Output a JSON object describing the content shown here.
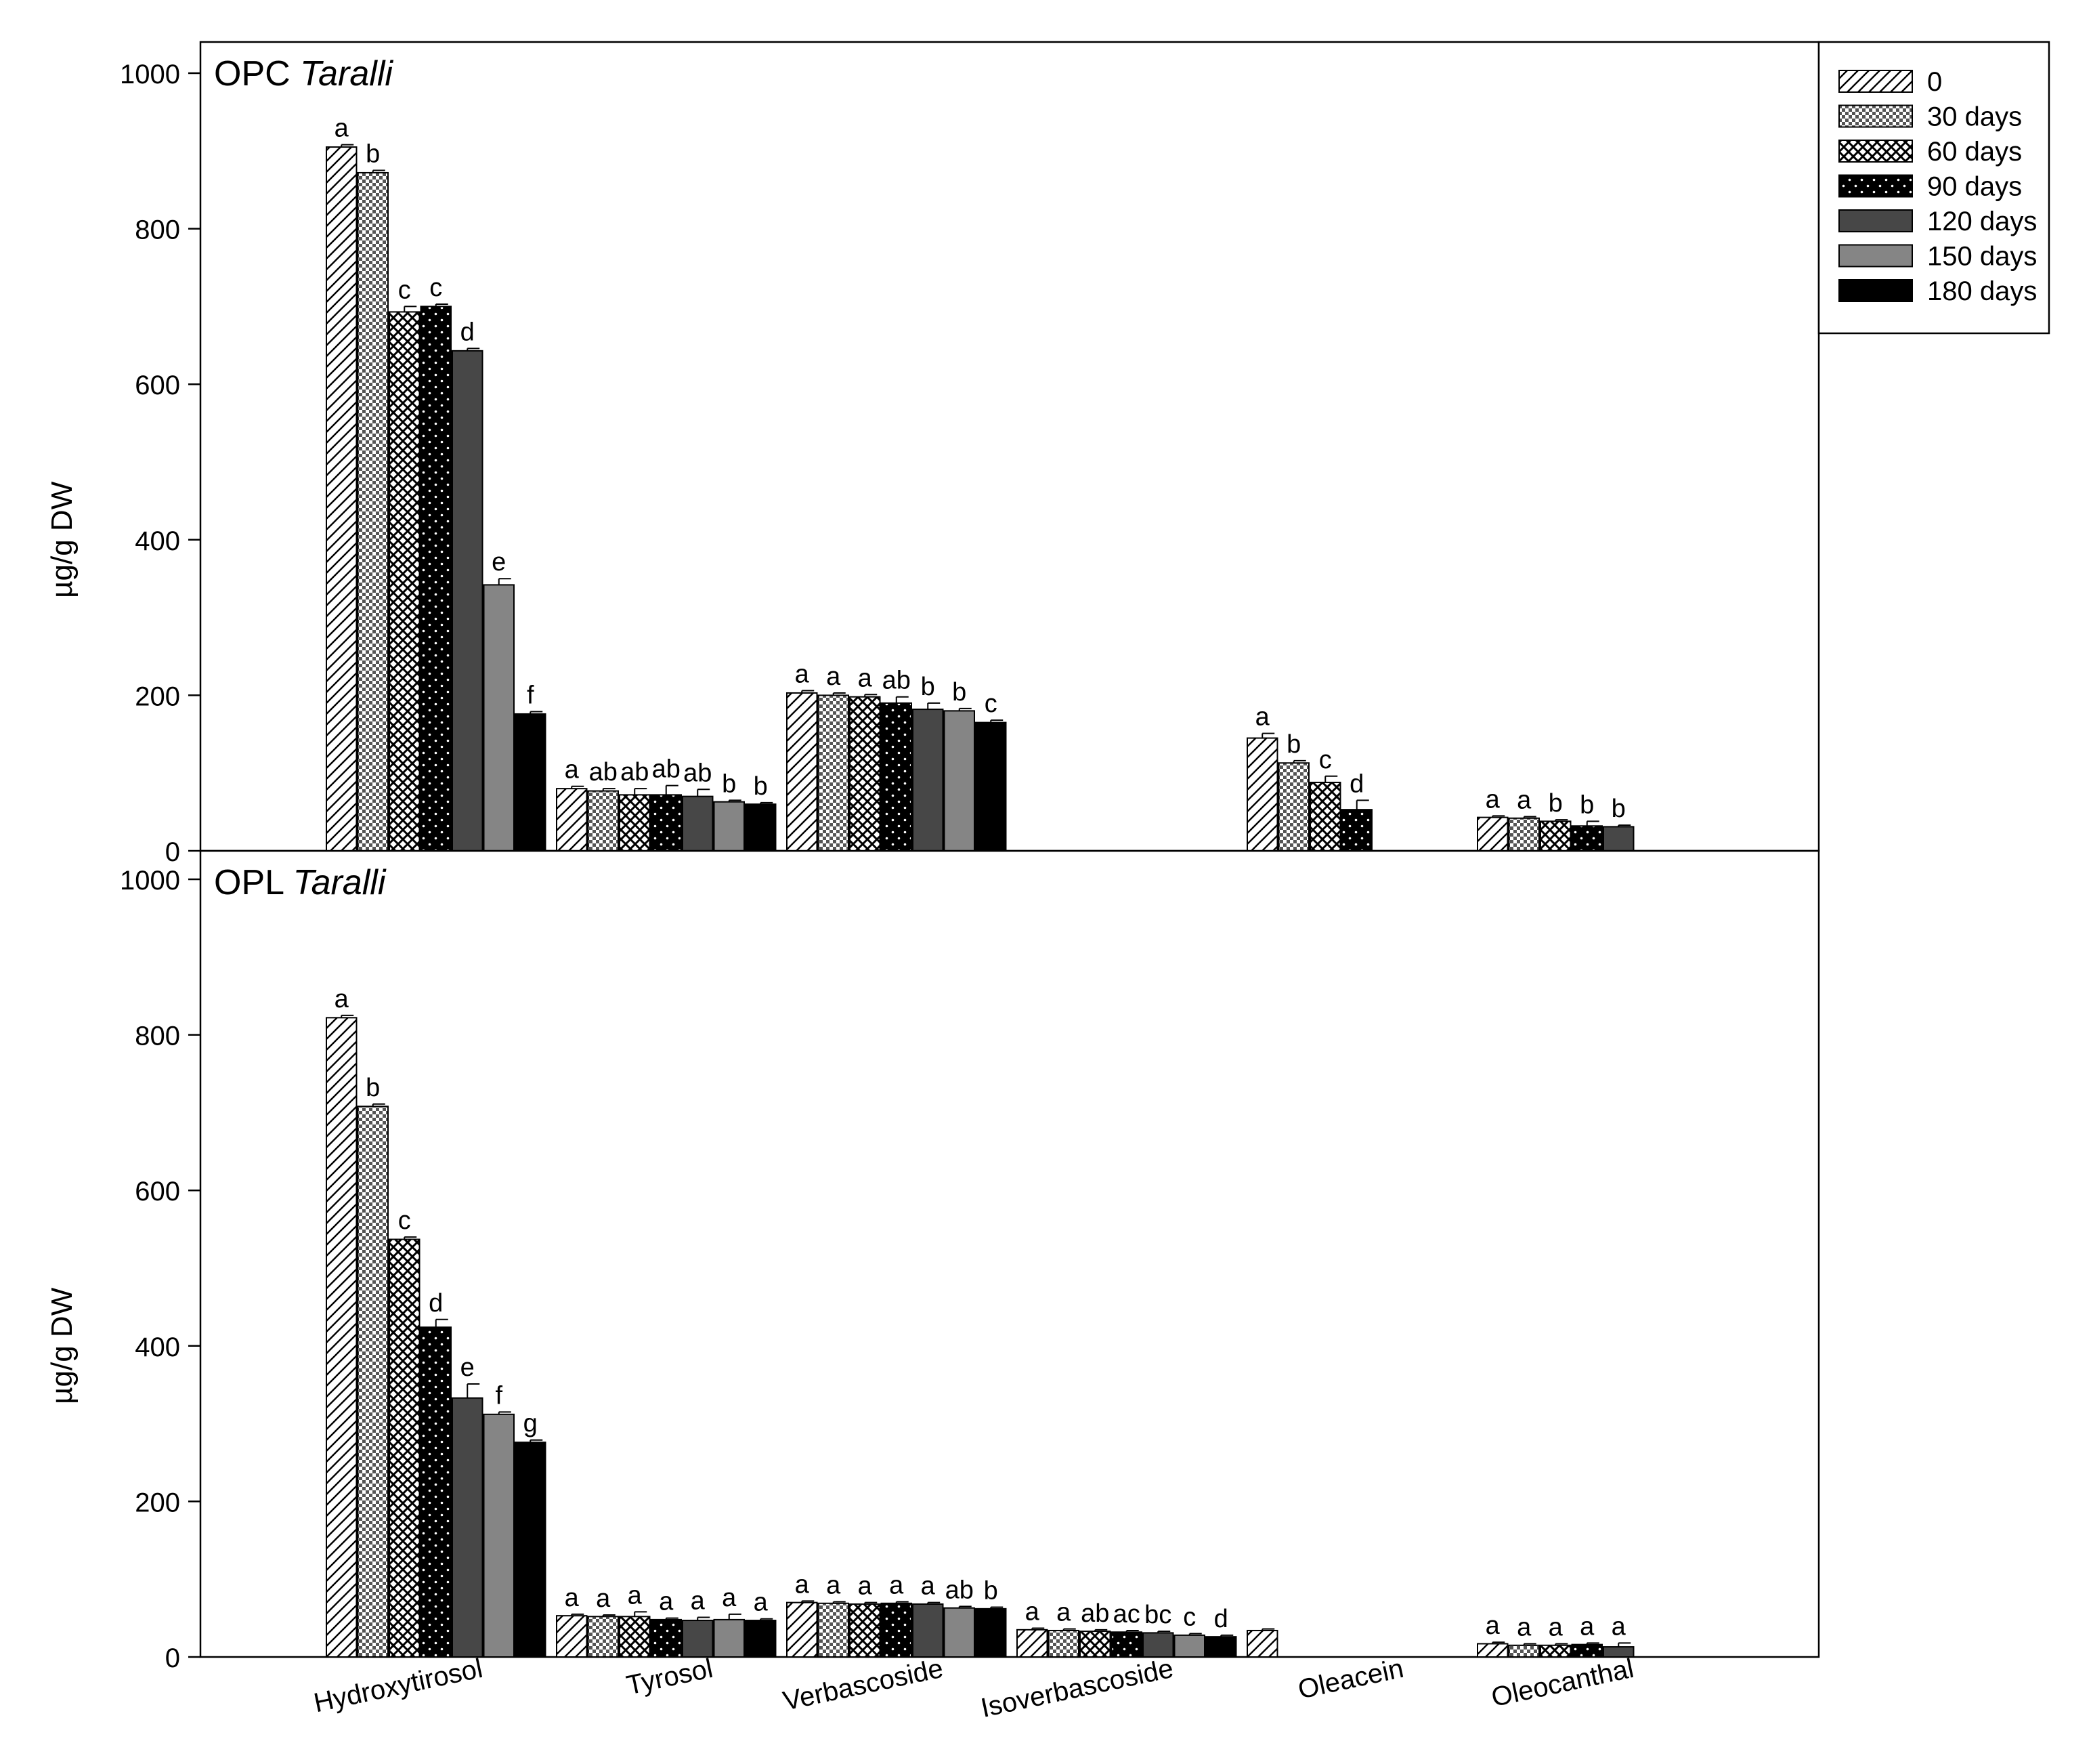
{
  "chart_data": {
    "type": "bar",
    "categories": [
      "Hydroxytirosol",
      "Tyrosol",
      "Verbascoside",
      "Isoverbascoside",
      "Oleacein",
      "Oleocanthal"
    ],
    "legend": {
      "position": "top-right",
      "entries": [
        "0",
        "30 days",
        "60 days",
        "90 days",
        "120 days",
        "150 days",
        "180 days"
      ]
    },
    "y_ticks": [
      "0",
      "200",
      "400",
      "600",
      "800",
      "1000"
    ],
    "ylim": [
      0,
      1040
    ],
    "grid": false,
    "panels": [
      {
        "title_prefix": "OPC",
        "title_italic": "Taralli",
        "ylabel": "µg/g DW",
        "series": [
          {
            "name": "0",
            "values": [
              905,
              80,
              203,
              null,
              145,
              43
            ]
          },
          {
            "name": "30 days",
            "values": [
              872,
              77,
              200,
              null,
              113,
              42
            ]
          },
          {
            "name": "60 days",
            "values": [
              693,
              72,
              198,
              null,
              88,
              38
            ]
          },
          {
            "name": "90 days",
            "values": [
              700,
              72,
              190,
              null,
              53,
              32
            ]
          },
          {
            "name": "120 days",
            "values": [
              643,
              70,
              182,
              null,
              null,
              31
            ]
          },
          {
            "name": "150 days",
            "values": [
              342,
              63,
              180,
              null,
              null,
              null
            ]
          },
          {
            "name": "180 days",
            "values": [
              176,
              60,
              165,
              null,
              null,
              null
            ]
          }
        ],
        "errors": [
          [
            3,
            3,
            3,
            null,
            6,
            2
          ],
          [
            3,
            3,
            3,
            null,
            3,
            2
          ],
          [
            7,
            8,
            3,
            null,
            8,
            2
          ],
          [
            3,
            12,
            8,
            null,
            12,
            6
          ],
          [
            3,
            9,
            8,
            null,
            null,
            2
          ],
          [
            8,
            2,
            3,
            null,
            null,
            null
          ],
          [
            3,
            2,
            3,
            null,
            null,
            null
          ]
        ],
        "letters": [
          [
            "a",
            "a",
            "a",
            null,
            "a",
            "a"
          ],
          [
            "b",
            "ab",
            "a",
            null,
            "b",
            "a"
          ],
          [
            "c",
            "ab",
            "a",
            null,
            "c",
            "b"
          ],
          [
            "c",
            "ab",
            "ab",
            null,
            "d",
            "b"
          ],
          [
            "d",
            "ab",
            "b",
            null,
            null,
            "b"
          ],
          [
            "e",
            "b",
            "b",
            null,
            null,
            null
          ],
          [
            "f",
            "b",
            "c",
            null,
            null,
            null
          ]
        ]
      },
      {
        "title_prefix": "OPL",
        "title_italic": "Taralli",
        "ylabel": "µg/g DW",
        "series": [
          {
            "name": "0",
            "values": [
              822,
              53,
              70,
              35,
              34,
              17
            ]
          },
          {
            "name": "30 days",
            "values": [
              708,
              52,
              69,
              34,
              null,
              15
            ]
          },
          {
            "name": "60 days",
            "values": [
              537,
              52,
              68,
              33,
              null,
              15
            ]
          },
          {
            "name": "90 days",
            "values": [
              424,
              48,
              69,
              32,
              null,
              16
            ]
          },
          {
            "name": "120 days",
            "values": [
              333,
              47,
              68,
              31,
              null,
              13
            ]
          },
          {
            "name": "150 days",
            "values": [
              312,
              48,
              63,
              28,
              null,
              null
            ]
          },
          {
            "name": "180 days",
            "values": [
              276,
              47,
              62,
              26,
              null,
              null
            ]
          }
        ],
        "errors": [
          [
            3,
            2,
            2,
            2,
            2,
            2
          ],
          [
            3,
            2,
            2,
            2,
            null,
            2
          ],
          [
            3,
            6,
            2,
            2,
            null,
            2
          ],
          [
            10,
            2,
            2,
            2,
            null,
            2
          ],
          [
            18,
            4,
            2,
            2,
            null,
            5
          ],
          [
            3,
            7,
            2,
            2,
            null,
            null
          ],
          [
            3,
            2,
            2,
            2,
            null,
            null
          ]
        ],
        "letters": [
          [
            "a",
            "a",
            "a",
            "a",
            null,
            "a"
          ],
          [
            "b",
            "a",
            "a",
            "a",
            null,
            "a"
          ],
          [
            "c",
            "a",
            "a",
            "ab",
            null,
            "a"
          ],
          [
            "d",
            "a",
            "a",
            "ac",
            null,
            "a"
          ],
          [
            "e",
            "a",
            "a",
            "bc",
            null,
            "a"
          ],
          [
            "f",
            "a",
            "ab",
            "c",
            null,
            null
          ],
          [
            "g",
            "a",
            "b",
            "d",
            null,
            null
          ]
        ]
      }
    ]
  }
}
